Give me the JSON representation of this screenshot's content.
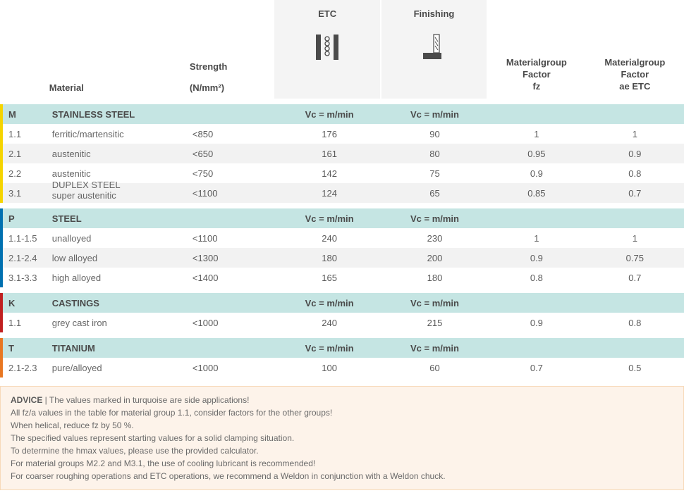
{
  "headers": {
    "material": "Material",
    "strength": "Strength",
    "strength_unit": "(N/mm²)",
    "etc": "ETC",
    "finishing": "Finishing",
    "factor_fz_l1": "Materialgroup",
    "factor_fz_l2": "Factor",
    "factor_fz_l3": "fz",
    "factor_ae_l1": "Materialgroup",
    "factor_ae_l2": "Factor",
    "factor_ae_l3": "ae ETC"
  },
  "vc_label": "Vc = m/min",
  "sections": [
    {
      "code": "M",
      "title": "STAINLESS STEEL",
      "rows": [
        {
          "code": "1.1",
          "mat": "ferritic/martensitic",
          "str": "<850",
          "etc": "176",
          "fin": "90",
          "fz": "1",
          "ae": "1"
        },
        {
          "code": "2.1",
          "mat": "austenitic",
          "str": "<650",
          "etc": "161",
          "fin": "80",
          "fz": "0.95",
          "ae": "0.9"
        },
        {
          "code": "2.2",
          "mat": "austenitic",
          "str": "<750",
          "etc": "142",
          "fin": "75",
          "fz": "0.9",
          "ae": "0.8"
        },
        {
          "code": "3.1",
          "mat": "DUPLEX STEEL | super austenitic",
          "str": "<1100",
          "etc": "124",
          "fin": "65",
          "fz": "0.85",
          "ae": "0.7"
        }
      ]
    },
    {
      "code": "P",
      "title": "STEEL",
      "rows": [
        {
          "code": "1.1-1.5",
          "mat": "unalloyed",
          "str": "<1100",
          "etc": "240",
          "fin": "230",
          "fz": "1",
          "ae": "1"
        },
        {
          "code": "2.1-2.4",
          "mat": "low alloyed",
          "str": "<1300",
          "etc": "180",
          "fin": "200",
          "fz": "0.9",
          "ae": "0.75"
        },
        {
          "code": "3.1-3.3",
          "mat": "high alloyed",
          "str": "<1400",
          "etc": "165",
          "fin": "180",
          "fz": "0.8",
          "ae": "0.7"
        }
      ]
    },
    {
      "code": "K",
      "title": "CASTINGS",
      "rows": [
        {
          "code": "1.1",
          "mat": "grey cast iron",
          "str": "<1000",
          "etc": "240",
          "fin": "215",
          "fz": "0.9",
          "ae": "0.8"
        }
      ]
    },
    {
      "code": "T",
      "title": "TITANIUM",
      "rows": [
        {
          "code": "2.1-2.3",
          "mat": "pure/alloyed",
          "str": "<1000",
          "etc": "100",
          "fin": "60",
          "fz": "0.7",
          "ae": "0.5"
        }
      ]
    }
  ],
  "advice": {
    "title": "ADVICE",
    "sep": " | ",
    "lines": [
      "The values marked in turquoise are side applications!",
      "All fz/a values in the table for material group 1.1, consider factors for the other groups!",
      "When helical, reduce fz by 50 %.",
      "The specified values represent starting values for a solid clamping situation.",
      "To determine the hmax values, please use the provided calculator.",
      "For material groups M2.2 and M3.1, the use of cooling lubricant is recommended!",
      "For coarser roughing operations and ETC operations, we recommend a Weldon in conjunction with a Weldon chuck."
    ]
  },
  "style": {
    "section_bg": "#c5e5e3",
    "alt_row_bg": "#f2f2f2",
    "advice_bg": "#fdf3ea",
    "advice_border": "#f7d9b8",
    "bar_M": "#f5d400",
    "bar_P": "#0070b0",
    "bar_K": "#c02020",
    "bar_T": "#e87722",
    "text_color": "#5a5a5a",
    "header_col_bg": "#f4f4f4"
  }
}
